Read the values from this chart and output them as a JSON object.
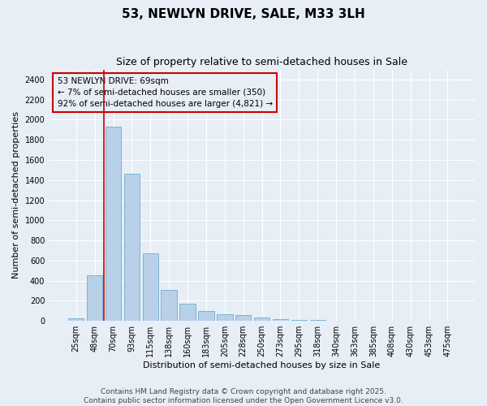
{
  "title": "53, NEWLYN DRIVE, SALE, M33 3LH",
  "subtitle": "Size of property relative to semi-detached houses in Sale",
  "xlabel": "Distribution of semi-detached houses by size in Sale",
  "ylabel": "Number of semi-detached properties",
  "bar_color": "#b8d0e8",
  "bar_edge_color": "#6aaed6",
  "background_color": "#e8eef5",
  "grid_color": "#ffffff",
  "annotation_line_color": "#cc0000",
  "annotation_box_color": "#cc0000",
  "annotation_text": "53 NEWLYN DRIVE: 69sqm\n← 7% of semi-detached houses are smaller (350)\n92% of semi-detached houses are larger (4,821) →",
  "property_size": 69,
  "categories": [
    "25sqm",
    "48sqm",
    "70sqm",
    "93sqm",
    "115sqm",
    "138sqm",
    "160sqm",
    "183sqm",
    "205sqm",
    "228sqm",
    "250sqm",
    "273sqm",
    "295sqm",
    "318sqm",
    "340sqm",
    "363sqm",
    "385sqm",
    "408sqm",
    "430sqm",
    "453sqm",
    "475sqm"
  ],
  "values": [
    22,
    450,
    1930,
    1460,
    670,
    305,
    175,
    100,
    65,
    55,
    37,
    20,
    12,
    8,
    4,
    0,
    0,
    0,
    0,
    0,
    0
  ],
  "ylim": [
    0,
    2500
  ],
  "yticks": [
    0,
    200,
    400,
    600,
    800,
    1000,
    1200,
    1400,
    1600,
    1800,
    2000,
    2200,
    2400
  ],
  "annotation_bar_index": 1,
  "footer": "Contains HM Land Registry data © Crown copyright and database right 2025.\nContains public sector information licensed under the Open Government Licence v3.0.",
  "title_fontsize": 11,
  "subtitle_fontsize": 9,
  "axis_label_fontsize": 8,
  "tick_fontsize": 7,
  "annotation_fontsize": 7.5,
  "footer_fontsize": 6.5
}
